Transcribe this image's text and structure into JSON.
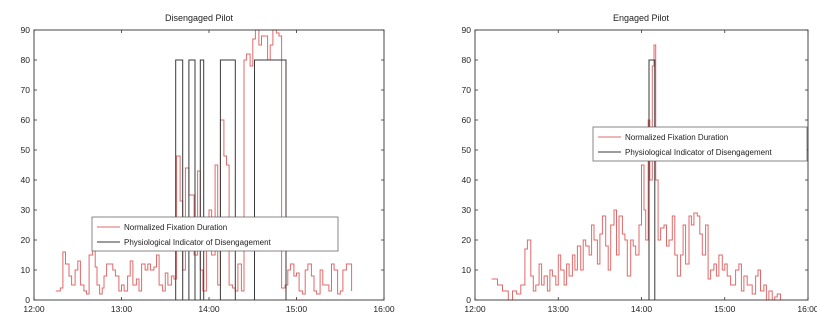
{
  "colors": {
    "fixation": "#e06a6a",
    "indicator": "#3a3a3a",
    "axis": "#333333",
    "background": "#ffffff"
  },
  "chart_data": [
    {
      "type": "line",
      "title": "Disengaged Pilot",
      "xlabel": "",
      "ylabel": "",
      "xlim": [
        12.0,
        16.0
      ],
      "ylim": [
        0,
        90
      ],
      "xticks": [
        12,
        13,
        14,
        15,
        16
      ],
      "xtick_labels": [
        "12:00",
        "13:00",
        "14:00",
        "15:00",
        "16:00"
      ],
      "yticks": [
        0,
        10,
        20,
        30,
        40,
        50,
        60,
        70,
        80,
        90
      ],
      "ytick_labels": [
        "0",
        "10",
        "20",
        "30",
        "40",
        "50",
        "60",
        "70",
        "80",
        "90"
      ],
      "legend_position": "lower-center",
      "legend": [
        "Normalized Fixation Duration",
        "Physiological Indicator of Disengagement"
      ],
      "series": [
        {
          "name": "Normalized Fixation Duration",
          "x": [
            12.25,
            12.3,
            12.33,
            12.36,
            12.4,
            12.43,
            12.47,
            12.5,
            12.53,
            12.57,
            12.6,
            12.63,
            12.67,
            12.7,
            12.72,
            12.75,
            12.78,
            12.8,
            12.83,
            12.87,
            12.9,
            12.93,
            12.97,
            13.0,
            13.03,
            13.07,
            13.1,
            13.13,
            13.17,
            13.2,
            13.23,
            13.27,
            13.3,
            13.33,
            13.37,
            13.4,
            13.43,
            13.47,
            13.5,
            13.53,
            13.57,
            13.6,
            13.63,
            13.67,
            13.7,
            13.73,
            13.77,
            13.8,
            13.83,
            13.87,
            13.9,
            13.93,
            13.97,
            14.0,
            14.03,
            14.07,
            14.1,
            14.13,
            14.17,
            14.2,
            14.23,
            14.27,
            14.3,
            14.33,
            14.37,
            14.4,
            14.43,
            14.47,
            14.5,
            14.53,
            14.57,
            14.6,
            14.63,
            14.67,
            14.7,
            14.73,
            14.77,
            14.8,
            14.83,
            14.87,
            14.9,
            14.93,
            14.97,
            15.0,
            15.03,
            15.07,
            15.1,
            15.13,
            15.17,
            15.2,
            15.23,
            15.27,
            15.3,
            15.33,
            15.37,
            15.4,
            15.43,
            15.47,
            15.5,
            15.53,
            15.57,
            15.6,
            15.63
          ],
          "y": [
            3,
            4,
            16,
            12,
            8,
            5,
            10,
            13,
            5,
            3,
            2,
            15,
            19,
            11,
            5,
            2,
            4,
            8,
            12,
            12,
            10,
            8,
            3,
            5,
            3,
            8,
            13,
            5,
            7,
            3,
            12,
            10,
            12,
            10,
            11,
            15,
            5,
            3,
            9,
            5,
            8,
            7,
            48,
            33,
            10,
            44,
            35,
            35,
            15,
            43,
            10,
            3,
            20,
            30,
            15,
            45,
            5,
            60,
            48,
            45,
            5,
            4,
            3,
            12,
            3,
            80,
            82,
            78,
            87,
            90,
            85,
            88,
            88,
            80,
            85,
            90,
            89,
            88,
            4,
            5,
            10,
            12,
            8,
            9,
            3,
            2,
            10,
            12,
            8,
            3,
            2,
            10,
            5,
            5,
            3,
            12,
            10,
            2,
            3,
            10,
            12,
            12,
            3
          ]
        },
        {
          "name": "Physiological Indicator of Disengagement",
          "pulses": [
            [
              13.62,
              13.7
            ],
            [
              13.77,
              13.84
            ],
            [
              13.9,
              13.94
            ],
            [
              14.13,
              14.3
            ],
            [
              14.52,
              14.88
            ]
          ],
          "level": 80
        }
      ]
    },
    {
      "type": "line",
      "title": "Engaged Pilot",
      "xlabel": "",
      "ylabel": "",
      "xlim": [
        12.0,
        16.0
      ],
      "ylim": [
        0,
        90
      ],
      "xticks": [
        12,
        13,
        14,
        15,
        16
      ],
      "xtick_labels": [
        "12:00",
        "13:00",
        "14:00",
        "15:00",
        "16:00"
      ],
      "yticks": [
        0,
        10,
        20,
        30,
        40,
        50,
        60,
        70,
        80,
        90
      ],
      "ytick_labels": [
        "0",
        "10",
        "20",
        "30",
        "40",
        "50",
        "60",
        "70",
        "80",
        "90"
      ],
      "legend_position": "right",
      "legend": [
        "Normalized Fixation Duration",
        "Physiological Indicator of Disengagement"
      ],
      "series": [
        {
          "name": "Normalized Fixation Duration",
          "x": [
            12.2,
            12.27,
            12.33,
            12.4,
            12.45,
            12.5,
            12.55,
            12.6,
            12.63,
            12.67,
            12.7,
            12.73,
            12.77,
            12.8,
            12.83,
            12.87,
            12.9,
            12.93,
            12.97,
            13.0,
            13.03,
            13.07,
            13.1,
            13.13,
            13.17,
            13.2,
            13.23,
            13.27,
            13.3,
            13.33,
            13.37,
            13.4,
            13.43,
            13.47,
            13.5,
            13.53,
            13.57,
            13.6,
            13.63,
            13.67,
            13.7,
            13.73,
            13.77,
            13.8,
            13.83,
            13.87,
            13.9,
            13.93,
            13.97,
            14.0,
            14.03,
            14.05,
            14.08,
            14.1,
            14.13,
            14.15,
            14.17,
            14.2,
            14.23,
            14.27,
            14.3,
            14.33,
            14.37,
            14.4,
            14.43,
            14.47,
            14.5,
            14.53,
            14.57,
            14.6,
            14.63,
            14.67,
            14.7,
            14.73,
            14.77,
            14.8,
            14.83,
            14.87,
            14.9,
            14.93,
            14.97,
            15.0,
            15.03,
            15.07,
            15.1,
            15.13,
            15.17,
            15.2,
            15.23,
            15.27,
            15.3,
            15.33,
            15.37,
            15.4,
            15.43,
            15.47,
            15.5,
            15.53,
            15.57,
            15.6,
            15.63,
            15.67
          ],
          "y": [
            7,
            5,
            3,
            0,
            3,
            2,
            5,
            17,
            20,
            8,
            3,
            5,
            12,
            5,
            8,
            3,
            10,
            8,
            5,
            15,
            10,
            5,
            12,
            8,
            15,
            10,
            18,
            10,
            20,
            18,
            15,
            25,
            20,
            12,
            22,
            28,
            18,
            10,
            25,
            30,
            15,
            28,
            22,
            20,
            8,
            20,
            18,
            15,
            25,
            45,
            30,
            20,
            60,
            40,
            78,
            85,
            40,
            20,
            24,
            25,
            18,
            20,
            28,
            15,
            8,
            15,
            25,
            12,
            28,
            25,
            29,
            28,
            22,
            15,
            25,
            7,
            10,
            12,
            8,
            15,
            10,
            12,
            8,
            5,
            5,
            10,
            12,
            3,
            8,
            5,
            5,
            2,
            8,
            10,
            3,
            5,
            0,
            3,
            0,
            1,
            2,
            0
          ]
        },
        {
          "name": "Physiological Indicator of Disengagement",
          "pulses": [
            [
              14.09,
              14.16
            ]
          ],
          "level": 80
        }
      ]
    }
  ]
}
